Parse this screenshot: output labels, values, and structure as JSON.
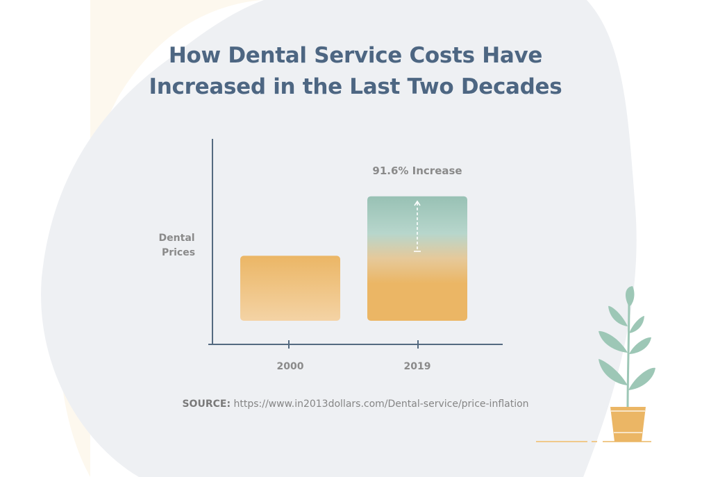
{
  "title_lines": [
    "How Dental Service Costs Have",
    "Increased in the Last Two Decades"
  ],
  "colors": {
    "title": "#4d6682",
    "axis": "#546a80",
    "label_text": "#8a8a8a",
    "bar_orange": "#ebb665",
    "bar_orange_light": "#f4d3a5",
    "bar_teal": "#98c1b4",
    "blob_gray": "#eef0f3",
    "blob_cream": "#fdf8ee",
    "plant_leaf": "#9dc7b6",
    "pot": "#ebb665"
  },
  "source": {
    "label": "SOURCE:",
    "url": "https://www.in2013dollars.com/Dental-service/price-inflation"
  },
  "chart_data": {
    "type": "bar",
    "categories": [
      "2000",
      "2019"
    ],
    "values": [
      100,
      191.6
    ],
    "ylabel": "Dental Prices",
    "xlabel": "",
    "ylim": [
      0,
      280
    ],
    "y_ticks_shown": false,
    "annotation": "91.6% Increase",
    "grid": false
  }
}
